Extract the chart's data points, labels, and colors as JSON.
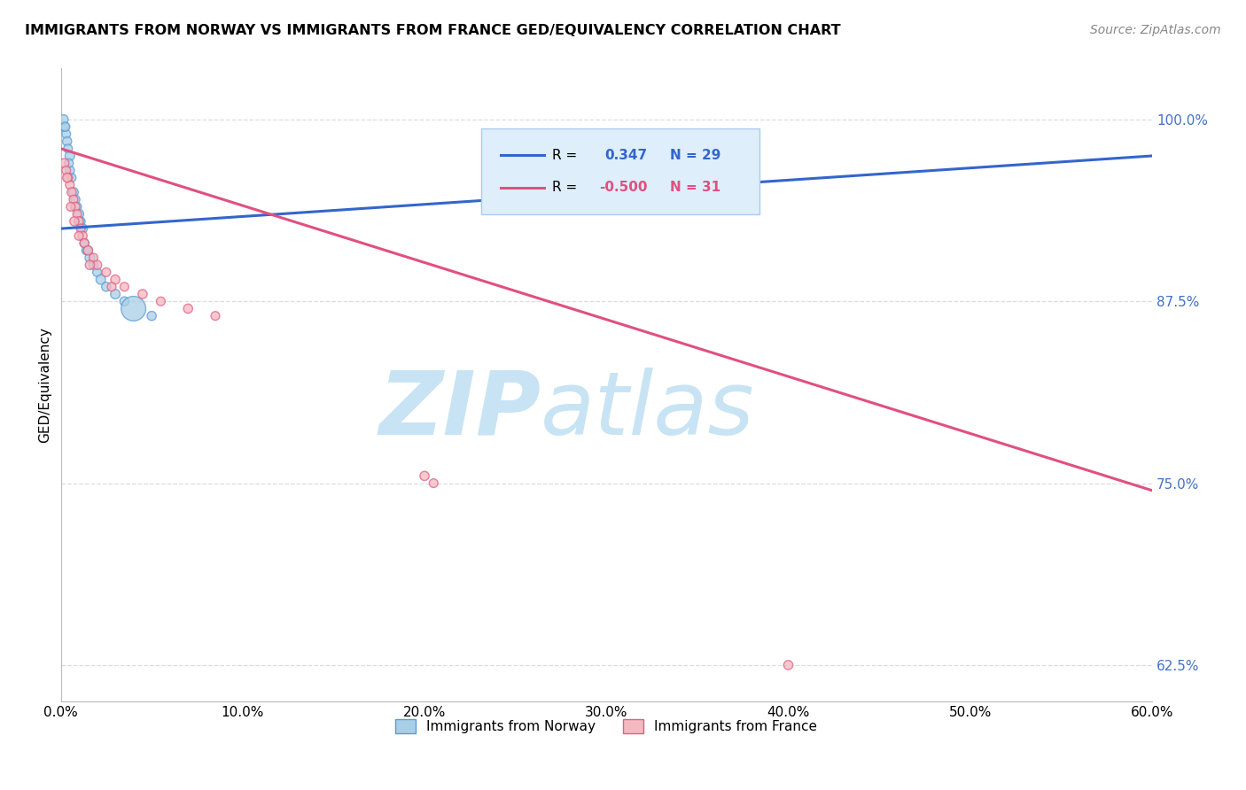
{
  "title": "IMMIGRANTS FROM NORWAY VS IMMIGRANTS FROM FRANCE GED/EQUIVALENCY CORRELATION CHART",
  "source": "Source: ZipAtlas.com",
  "xlim": [
    0.0,
    60.0
  ],
  "ylim": [
    60.0,
    103.5
  ],
  "ylabel": "GED/Equivalency",
  "norway_color": "#a8cfe8",
  "france_color": "#f4b8c1",
  "norway_edge": "#5b9bd5",
  "france_edge": "#e06080",
  "norway_R": 0.347,
  "norway_N": 29,
  "france_R": -0.5,
  "france_N": 31,
  "norway_scatter_x": [
    0.2,
    0.3,
    0.35,
    0.4,
    0.5,
    0.5,
    0.6,
    0.7,
    0.8,
    0.9,
    1.0,
    1.0,
    1.1,
    1.2,
    1.3,
    1.4,
    1.5,
    1.6,
    1.8,
    2.0,
    2.2,
    2.5,
    3.0,
    3.5,
    4.0,
    5.0,
    0.15,
    0.25,
    0.45
  ],
  "norway_scatter_y": [
    99.5,
    99.0,
    98.5,
    98.0,
    97.5,
    96.5,
    96.0,
    95.0,
    94.5,
    94.0,
    93.5,
    93.0,
    93.0,
    92.5,
    91.5,
    91.0,
    91.0,
    90.5,
    90.0,
    89.5,
    89.0,
    88.5,
    88.0,
    87.5,
    87.0,
    86.5,
    100.0,
    99.5,
    97.0
  ],
  "norway_scatter_size": [
    60,
    50,
    55,
    50,
    60,
    55,
    50,
    60,
    55,
    50,
    60,
    55,
    50,
    60,
    55,
    50,
    55,
    60,
    55,
    50,
    60,
    55,
    60,
    55,
    400,
    55,
    60,
    55,
    50
  ],
  "france_scatter_x": [
    0.2,
    0.3,
    0.4,
    0.5,
    0.6,
    0.7,
    0.8,
    0.9,
    1.0,
    1.1,
    1.2,
    1.3,
    1.5,
    1.8,
    2.0,
    2.5,
    3.0,
    3.5,
    4.5,
    5.5,
    7.0,
    8.5,
    0.35,
    0.55,
    0.75,
    1.0,
    1.6,
    2.8,
    20.0,
    20.5,
    40.0
  ],
  "france_scatter_y": [
    97.0,
    96.5,
    96.0,
    95.5,
    95.0,
    94.5,
    94.0,
    93.5,
    93.0,
    92.5,
    92.0,
    91.5,
    91.0,
    90.5,
    90.0,
    89.5,
    89.0,
    88.5,
    88.0,
    87.5,
    87.0,
    86.5,
    96.0,
    94.0,
    93.0,
    92.0,
    90.0,
    88.5,
    75.5,
    75.0,
    62.5
  ],
  "france_scatter_size": [
    55,
    50,
    55,
    50,
    55,
    50,
    55,
    50,
    55,
    50,
    55,
    50,
    55,
    50,
    55,
    50,
    55,
    50,
    55,
    50,
    55,
    50,
    55,
    50,
    55,
    50,
    55,
    50,
    55,
    50,
    55
  ],
  "watermark_text": "ZIP",
  "watermark_text2": "atlas",
  "watermark_color": "#c8e4f4",
  "legend_box_color": "#deeefa",
  "legend_box_edge": "#aaccee",
  "norway_line_color": "#3366cc",
  "france_line_color": "#e05080",
  "gridline_color": "#dddddd",
  "norway_line_x": [
    0.0,
    60.0
  ],
  "norway_line_y": [
    92.5,
    97.5
  ],
  "france_line_x": [
    0.0,
    60.0
  ],
  "france_line_y": [
    98.0,
    74.5
  ],
  "ytick_vals": [
    62.5,
    75.0,
    87.5,
    100.0
  ],
  "xtick_vals": [
    0,
    10,
    20,
    30,
    40,
    50,
    60
  ],
  "ytick_color": "#4472c4"
}
